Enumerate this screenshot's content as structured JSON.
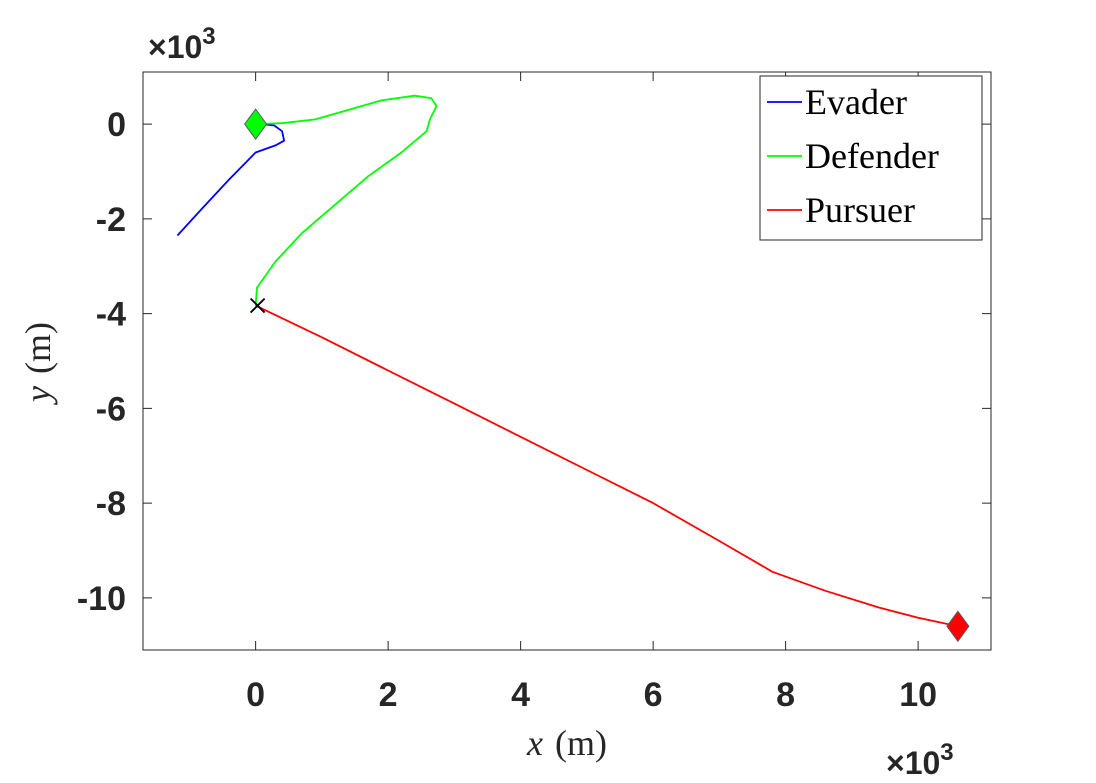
{
  "chart_data": {
    "type": "line",
    "title": "",
    "xlabel": {
      "var": "x",
      "unit": "(m)"
    },
    "ylabel": {
      "var": "y",
      "unit": "(m)"
    },
    "x_multiplier": "×10",
    "y_multiplier": "×10",
    "x_exponent": "3",
    "y_exponent": "3",
    "xlim": [
      -1.7,
      11.1
    ],
    "ylim": [
      -11.1,
      1.1
    ],
    "xticks": [
      0,
      2,
      4,
      6,
      8,
      10
    ],
    "yticks": [
      0,
      -2,
      -4,
      -6,
      -8,
      -10
    ],
    "xtick_labels": [
      "0",
      "2",
      "4",
      "6",
      "8",
      "10"
    ],
    "ytick_labels": [
      "0",
      "-2",
      "-4",
      "-6",
      "-8",
      "-10"
    ],
    "grid": false,
    "legend_position": "top-right",
    "series": [
      {
        "name": "Evader",
        "color": "#0000ff",
        "x": [
          -1.18,
          -0.8,
          -0.4,
          0.0,
          0.3,
          0.43,
          0.4,
          0.28,
          0.1,
          0.0
        ],
        "y": [
          -2.35,
          -1.77,
          -1.17,
          -0.6,
          -0.45,
          -0.35,
          -0.15,
          -0.03,
          0.0,
          0.0
        ]
      },
      {
        "name": "Defender",
        "color": "#00ff00",
        "x": [
          0.0,
          0.4,
          0.9,
          1.4,
          1.9,
          2.4,
          2.65,
          2.73,
          2.63,
          2.58,
          2.2,
          1.7,
          1.2,
          0.7,
          0.3,
          0.02,
          0.0
        ],
        "y": [
          0.0,
          0.02,
          0.1,
          0.3,
          0.5,
          0.6,
          0.55,
          0.38,
          0.1,
          -0.15,
          -0.6,
          -1.1,
          -1.7,
          -2.3,
          -2.9,
          -3.45,
          -3.83
        ]
      },
      {
        "name": "Pursuer",
        "color": "#ff0000",
        "x": [
          0.0,
          1.0,
          2.0,
          3.0,
          4.0,
          5.0,
          6.0,
          7.0,
          7.8,
          8.6,
          9.4,
          10.0,
          10.6
        ],
        "y": [
          -3.83,
          -4.5,
          -5.2,
          -5.9,
          -6.6,
          -7.3,
          -8.0,
          -8.8,
          -9.45,
          -9.85,
          -10.2,
          -10.42,
          -10.6
        ]
      }
    ],
    "markers": [
      {
        "shape": "diamond",
        "color": "#00ff00",
        "x": 0.0,
        "y": 0.0
      },
      {
        "shape": "diamond",
        "color": "#ff0000",
        "x": 10.6,
        "y": -10.6
      },
      {
        "shape": "cross",
        "color": "#000000",
        "x": 0.03,
        "y": -3.83
      }
    ]
  }
}
